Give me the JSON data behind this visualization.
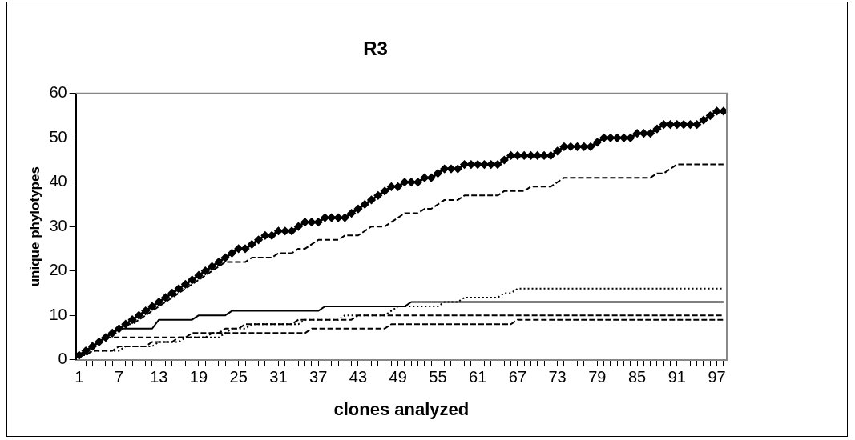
{
  "chart_data": {
    "type": "line",
    "title": "R3",
    "xlabel": "clones analyzed",
    "ylabel": "unique phylotypes",
    "categories": [
      "1",
      null,
      null,
      null,
      null,
      null,
      "7",
      null,
      null,
      null,
      null,
      null,
      "13",
      null,
      null,
      null,
      null,
      null,
      "19",
      null,
      null,
      null,
      null,
      null,
      "25",
      null,
      null,
      null,
      null,
      null,
      "31",
      null,
      null,
      null,
      null,
      null,
      "37",
      null,
      null,
      null,
      null,
      null,
      "43",
      null,
      null,
      null,
      null,
      null,
      "49",
      null,
      null,
      null,
      null,
      null,
      "55",
      null,
      null,
      null,
      null,
      null,
      "61",
      null,
      null,
      null,
      null,
      null,
      "67",
      null,
      null,
      null,
      null,
      null,
      "73",
      null,
      null,
      null,
      null,
      null,
      "79",
      null,
      null,
      null,
      null,
      null,
      "85",
      null,
      null,
      null,
      null,
      null,
      "91",
      null,
      null,
      null,
      null,
      null,
      "97",
      null
    ],
    "ylim": [
      0,
      60
    ],
    "yticks": [
      0,
      10,
      20,
      30,
      40,
      50,
      60
    ],
    "grid": false,
    "legend": false,
    "series": [
      {
        "color": "#000000",
        "marker": "diamond",
        "line_style": "solid",
        "values": [
          1,
          2,
          3,
          4,
          5,
          6,
          7,
          8,
          9,
          10,
          11,
          12,
          13,
          14,
          15,
          16,
          17,
          18,
          19,
          20,
          21,
          22,
          23,
          24,
          25,
          25,
          26,
          27,
          28,
          28,
          29,
          29,
          29,
          30,
          31,
          31,
          31,
          32,
          32,
          32,
          32,
          33,
          34,
          35,
          36,
          37,
          38,
          39,
          39,
          40,
          40,
          40,
          41,
          41,
          42,
          43,
          43,
          43,
          44,
          44,
          44,
          44,
          44,
          44,
          45,
          46,
          46,
          46,
          46,
          46,
          46,
          46,
          47,
          48,
          48,
          48,
          48,
          48,
          49,
          50,
          50,
          50,
          50,
          50,
          51,
          51,
          51,
          52,
          53,
          53,
          53,
          53,
          53,
          53,
          54,
          55,
          56,
          56
        ]
      },
      {
        "color": "#000000",
        "marker": "none",
        "line_style": "dashed",
        "values": [
          1,
          2,
          3,
          4,
          5,
          6,
          7,
          8,
          8,
          9,
          10,
          11,
          12,
          13,
          14,
          15,
          16,
          17,
          18,
          19,
          20,
          21,
          22,
          22,
          22,
          22,
          23,
          23,
          23,
          23,
          24,
          24,
          24,
          25,
          25,
          26,
          27,
          27,
          27,
          27,
          28,
          28,
          28,
          29,
          30,
          30,
          30,
          31,
          32,
          33,
          33,
          33,
          34,
          34,
          35,
          36,
          36,
          36,
          37,
          37,
          37,
          37,
          37,
          37,
          38,
          38,
          38,
          38,
          39,
          39,
          39,
          39,
          40,
          41,
          41,
          41,
          41,
          41,
          41,
          41,
          41,
          41,
          41,
          41,
          41,
          41,
          41,
          42,
          42,
          43,
          44,
          44,
          44,
          44,
          44,
          44,
          44,
          44
        ]
      },
      {
        "color": "#000000",
        "marker": "none",
        "line_style": "solid",
        "values": [
          1,
          2,
          3,
          4,
          5,
          6,
          7,
          7,
          7,
          7,
          7,
          7,
          9,
          9,
          9,
          9,
          9,
          9,
          10,
          10,
          10,
          10,
          10,
          11,
          11,
          11,
          11,
          11,
          11,
          11,
          11,
          11,
          11,
          11,
          11,
          11,
          11,
          12,
          12,
          12,
          12,
          12,
          12,
          12,
          12,
          12,
          12,
          12,
          12,
          12,
          13,
          13,
          13,
          13,
          13,
          13,
          13,
          13,
          13,
          13,
          13,
          13,
          13,
          13,
          13,
          13,
          13,
          13,
          13,
          13,
          13,
          13,
          13,
          13,
          13,
          13,
          13,
          13,
          13,
          13,
          13,
          13,
          13,
          13,
          13,
          13,
          13,
          13,
          13,
          13,
          13,
          13,
          13,
          13,
          13,
          13,
          13,
          13
        ]
      },
      {
        "color": "#000000",
        "marker": "none",
        "line_style": "dotted",
        "values": [
          1,
          1,
          2,
          2,
          2,
          2,
          2,
          3,
          3,
          3,
          3,
          3,
          4,
          4,
          4,
          4,
          5,
          5,
          5,
          5,
          5,
          5,
          6,
          7,
          7,
          7,
          8,
          8,
          8,
          8,
          8,
          8,
          8,
          8,
          9,
          9,
          9,
          9,
          9,
          9,
          10,
          10,
          10,
          10,
          10,
          10,
          10,
          11,
          12,
          12,
          12,
          12,
          12,
          12,
          12,
          13,
          13,
          13,
          14,
          14,
          14,
          14,
          14,
          14,
          15,
          15,
          16,
          16,
          16,
          16,
          16,
          16,
          16,
          16,
          16,
          16,
          16,
          16,
          16,
          16,
          16,
          16,
          16,
          16,
          16,
          16,
          16,
          16,
          16,
          16,
          16,
          16,
          16,
          16,
          16,
          16,
          16,
          16
        ]
      },
      {
        "color": "#000000",
        "marker": "none",
        "line_style": "dashed",
        "values": [
          1,
          2,
          3,
          4,
          5,
          5,
          5,
          5,
          5,
          5,
          5,
          5,
          5,
          5,
          5,
          5,
          5,
          6,
          6,
          6,
          6,
          6,
          7,
          7,
          7,
          8,
          8,
          8,
          8,
          8,
          8,
          8,
          8,
          9,
          9,
          9,
          9,
          9,
          9,
          9,
          9,
          9,
          10,
          10,
          10,
          10,
          10,
          10,
          10,
          10,
          10,
          10,
          10,
          10,
          10,
          10,
          10,
          10,
          10,
          10,
          10,
          10,
          10,
          10,
          10,
          10,
          10,
          10,
          10,
          10,
          10,
          10,
          10,
          10,
          10,
          10,
          10,
          10,
          10,
          10,
          10,
          10,
          10,
          10,
          10,
          10,
          10,
          10,
          10,
          10,
          10,
          10,
          10,
          10,
          10,
          10,
          10,
          10
        ]
      },
      {
        "color": "#000000",
        "marker": "none",
        "line_style": "dashed",
        "values": [
          1,
          1,
          2,
          2,
          2,
          2,
          3,
          3,
          3,
          3,
          3,
          4,
          4,
          4,
          4,
          5,
          5,
          5,
          5,
          5,
          6,
          6,
          6,
          6,
          6,
          6,
          6,
          6,
          6,
          6,
          6,
          6,
          6,
          6,
          6,
          7,
          7,
          7,
          7,
          7,
          7,
          7,
          7,
          7,
          7,
          7,
          7,
          8,
          8,
          8,
          8,
          8,
          8,
          8,
          8,
          8,
          8,
          8,
          8,
          8,
          8,
          8,
          8,
          8,
          8,
          8,
          9,
          9,
          9,
          9,
          9,
          9,
          9,
          9,
          9,
          9,
          9,
          9,
          9,
          9,
          9,
          9,
          9,
          9,
          9,
          9,
          9,
          9,
          9,
          9,
          9,
          9,
          9,
          9,
          9,
          9,
          9,
          9
        ]
      }
    ]
  }
}
